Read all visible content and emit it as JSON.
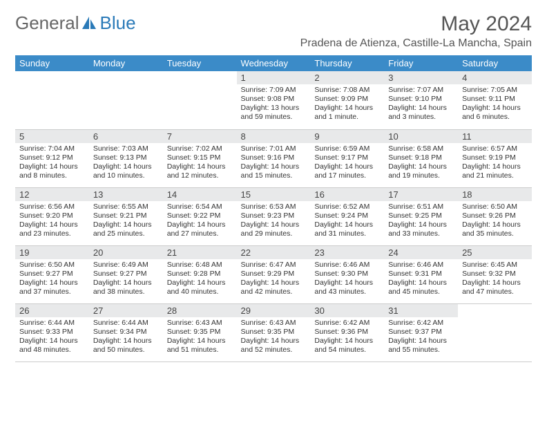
{
  "brand": {
    "part1": "General",
    "part2": "Blue"
  },
  "title": "May 2024",
  "location": "Pradena de Atienza, Castille-La Mancha, Spain",
  "colors": {
    "header_bg": "#3b8bc8",
    "header_text": "#ffffff",
    "daynum_bg": "#e8e9ea",
    "border": "#cccccc",
    "brand_gray": "#666666",
    "brand_blue": "#2a7ab8",
    "text": "#333333"
  },
  "weekdays": [
    "Sunday",
    "Monday",
    "Tuesday",
    "Wednesday",
    "Thursday",
    "Friday",
    "Saturday"
  ],
  "weeks": [
    [
      null,
      null,
      null,
      {
        "n": "1",
        "sunrise": "7:09 AM",
        "sunset": "9:08 PM",
        "daylight": "13 hours and 59 minutes."
      },
      {
        "n": "2",
        "sunrise": "7:08 AM",
        "sunset": "9:09 PM",
        "daylight": "14 hours and 1 minute."
      },
      {
        "n": "3",
        "sunrise": "7:07 AM",
        "sunset": "9:10 PM",
        "daylight": "14 hours and 3 minutes."
      },
      {
        "n": "4",
        "sunrise": "7:05 AM",
        "sunset": "9:11 PM",
        "daylight": "14 hours and 6 minutes."
      }
    ],
    [
      {
        "n": "5",
        "sunrise": "7:04 AM",
        "sunset": "9:12 PM",
        "daylight": "14 hours and 8 minutes."
      },
      {
        "n": "6",
        "sunrise": "7:03 AM",
        "sunset": "9:13 PM",
        "daylight": "14 hours and 10 minutes."
      },
      {
        "n": "7",
        "sunrise": "7:02 AM",
        "sunset": "9:15 PM",
        "daylight": "14 hours and 12 minutes."
      },
      {
        "n": "8",
        "sunrise": "7:01 AM",
        "sunset": "9:16 PM",
        "daylight": "14 hours and 15 minutes."
      },
      {
        "n": "9",
        "sunrise": "6:59 AM",
        "sunset": "9:17 PM",
        "daylight": "14 hours and 17 minutes."
      },
      {
        "n": "10",
        "sunrise": "6:58 AM",
        "sunset": "9:18 PM",
        "daylight": "14 hours and 19 minutes."
      },
      {
        "n": "11",
        "sunrise": "6:57 AM",
        "sunset": "9:19 PM",
        "daylight": "14 hours and 21 minutes."
      }
    ],
    [
      {
        "n": "12",
        "sunrise": "6:56 AM",
        "sunset": "9:20 PM",
        "daylight": "14 hours and 23 minutes."
      },
      {
        "n": "13",
        "sunrise": "6:55 AM",
        "sunset": "9:21 PM",
        "daylight": "14 hours and 25 minutes."
      },
      {
        "n": "14",
        "sunrise": "6:54 AM",
        "sunset": "9:22 PM",
        "daylight": "14 hours and 27 minutes."
      },
      {
        "n": "15",
        "sunrise": "6:53 AM",
        "sunset": "9:23 PM",
        "daylight": "14 hours and 29 minutes."
      },
      {
        "n": "16",
        "sunrise": "6:52 AM",
        "sunset": "9:24 PM",
        "daylight": "14 hours and 31 minutes."
      },
      {
        "n": "17",
        "sunrise": "6:51 AM",
        "sunset": "9:25 PM",
        "daylight": "14 hours and 33 minutes."
      },
      {
        "n": "18",
        "sunrise": "6:50 AM",
        "sunset": "9:26 PM",
        "daylight": "14 hours and 35 minutes."
      }
    ],
    [
      {
        "n": "19",
        "sunrise": "6:50 AM",
        "sunset": "9:27 PM",
        "daylight": "14 hours and 37 minutes."
      },
      {
        "n": "20",
        "sunrise": "6:49 AM",
        "sunset": "9:27 PM",
        "daylight": "14 hours and 38 minutes."
      },
      {
        "n": "21",
        "sunrise": "6:48 AM",
        "sunset": "9:28 PM",
        "daylight": "14 hours and 40 minutes."
      },
      {
        "n": "22",
        "sunrise": "6:47 AM",
        "sunset": "9:29 PM",
        "daylight": "14 hours and 42 minutes."
      },
      {
        "n": "23",
        "sunrise": "6:46 AM",
        "sunset": "9:30 PM",
        "daylight": "14 hours and 43 minutes."
      },
      {
        "n": "24",
        "sunrise": "6:46 AM",
        "sunset": "9:31 PM",
        "daylight": "14 hours and 45 minutes."
      },
      {
        "n": "25",
        "sunrise": "6:45 AM",
        "sunset": "9:32 PM",
        "daylight": "14 hours and 47 minutes."
      }
    ],
    [
      {
        "n": "26",
        "sunrise": "6:44 AM",
        "sunset": "9:33 PM",
        "daylight": "14 hours and 48 minutes."
      },
      {
        "n": "27",
        "sunrise": "6:44 AM",
        "sunset": "9:34 PM",
        "daylight": "14 hours and 50 minutes."
      },
      {
        "n": "28",
        "sunrise": "6:43 AM",
        "sunset": "9:35 PM",
        "daylight": "14 hours and 51 minutes."
      },
      {
        "n": "29",
        "sunrise": "6:43 AM",
        "sunset": "9:35 PM",
        "daylight": "14 hours and 52 minutes."
      },
      {
        "n": "30",
        "sunrise": "6:42 AM",
        "sunset": "9:36 PM",
        "daylight": "14 hours and 54 minutes."
      },
      {
        "n": "31",
        "sunrise": "6:42 AM",
        "sunset": "9:37 PM",
        "daylight": "14 hours and 55 minutes."
      },
      null
    ]
  ]
}
